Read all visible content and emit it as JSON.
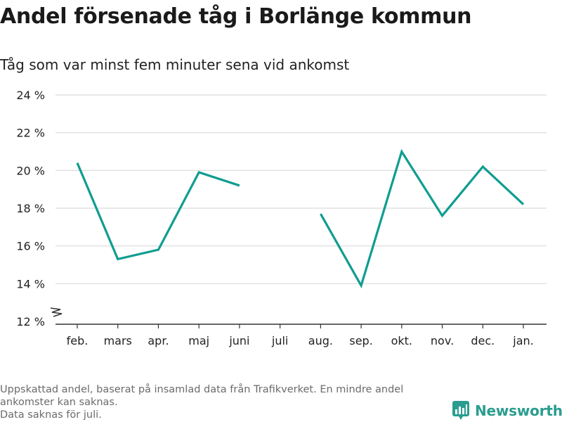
{
  "colors": {
    "line": "#0f9d90",
    "grid": "#d9d9d9",
    "axis": "#333333",
    "brand": "#2a9d8f"
  },
  "footnote": {
    "line1": "Uppskattad andel, baserat på insamlad data från Trafikverket. En mindre andel",
    "line2": "ankomster kan saknas.",
    "line3": "Data saknas för juli."
  },
  "brand": {
    "name": "Newsworthy",
    "icon": "newsworthy-logo-icon"
  },
  "chart_data": {
    "type": "line",
    "title": "Andel försenade tåg i Borlänge kommun",
    "subtitle": "Tåg som var minst fem minuter sena vid ankomst",
    "categories": [
      "feb.",
      "mars",
      "apr.",
      "maj",
      "juni",
      "juli",
      "aug.",
      "sep.",
      "okt.",
      "nov.",
      "dec.",
      "jan."
    ],
    "series": [
      {
        "values": [
          20.4,
          15.3,
          15.8,
          19.9,
          19.2,
          null,
          17.7,
          13.9,
          21.0,
          17.6,
          20.2,
          18.2
        ]
      }
    ],
    "ylim": [
      12,
      24
    ],
    "yticks": [
      12,
      14,
      16,
      18,
      20,
      22,
      24
    ],
    "ytick_labels": [
      "12 %",
      "14 %",
      "16 %",
      "18 %",
      "20 %",
      "22 %",
      "24 %"
    ],
    "axis_break": true,
    "grid": true,
    "legend": "none",
    "xlabel": "",
    "ylabel": ""
  }
}
